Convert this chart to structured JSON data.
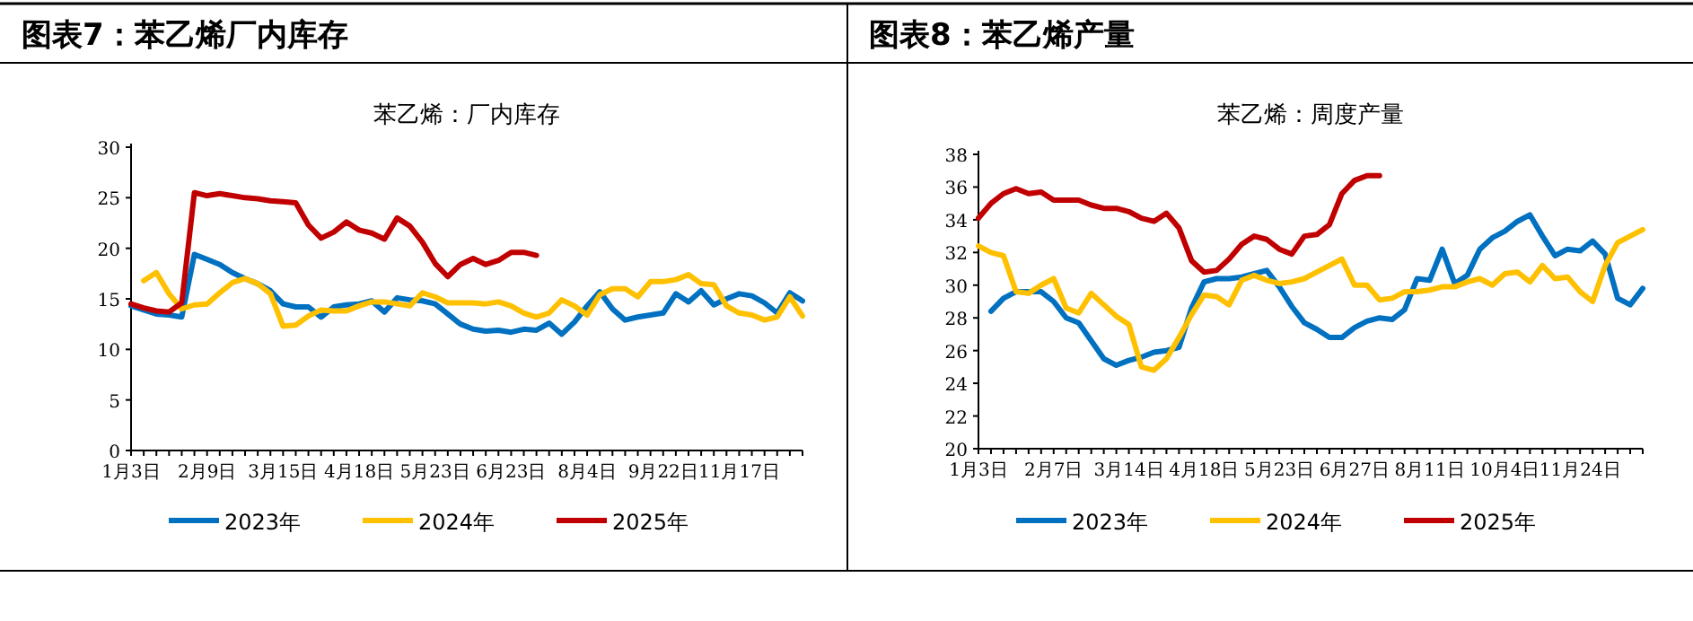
{
  "chart_data": [
    {
      "type": "line",
      "title": "图表7：苯乙烯厂内库存",
      "subtitle": "苯乙烯：厂内库存",
      "categories": [
        "1月3日",
        null,
        null,
        null,
        null,
        null,
        "2月9日",
        null,
        null,
        null,
        null,
        null,
        "3月15日",
        null,
        null,
        null,
        null,
        null,
        "4月18日",
        null,
        null,
        null,
        null,
        null,
        "5月23日",
        null,
        null,
        null,
        null,
        null,
        "6月23日",
        null,
        null,
        null,
        null,
        null,
        "8月4日",
        null,
        null,
        null,
        null,
        null,
        "9月22日",
        null,
        null,
        null,
        null,
        null,
        "11月17日",
        null,
        null,
        null,
        null,
        null
      ],
      "ylim": [
        0,
        30
      ],
      "yticks": [
        0,
        5,
        10,
        15,
        20,
        25,
        30
      ],
      "grid": false,
      "legend": "bottom",
      "marker": "none",
      "line_style": "solid",
      "series": [
        {
          "name": "2023年",
          "color": "#0070c0",
          "values": [
            14.3,
            13.9,
            13.5,
            13.4,
            13.2,
            19.4,
            18.9,
            18.4,
            17.6,
            17.0,
            16.5,
            15.8,
            14.5,
            14.2,
            14.2,
            13.2,
            14.2,
            14.4,
            14.5,
            14.8,
            13.7,
            15.1,
            14.9,
            14.8,
            14.5,
            13.5,
            12.5,
            12.0,
            11.8,
            11.9,
            11.7,
            12.0,
            11.9,
            12.6,
            11.5,
            12.7,
            14.3,
            15.7,
            14.0,
            12.9,
            13.2,
            13.4,
            13.6,
            15.5,
            14.7,
            15.8,
            14.4,
            15.0,
            15.5,
            15.3,
            14.6,
            13.6,
            15.6,
            14.8
          ]
        },
        {
          "name": "2024年",
          "color": "#ffc000",
          "values": [
            null,
            16.8,
            17.6,
            15.5,
            14.0,
            14.4,
            14.5,
            15.6,
            16.6,
            17.0,
            16.5,
            15.5,
            12.3,
            12.4,
            13.3,
            13.9,
            13.8,
            13.8,
            14.3,
            14.7,
            14.7,
            14.5,
            14.3,
            15.6,
            15.2,
            14.6,
            14.6,
            14.6,
            14.5,
            14.7,
            14.3,
            13.6,
            13.2,
            13.6,
            14.9,
            14.3,
            13.4,
            15.4,
            16.0,
            16.0,
            15.2,
            16.7,
            16.7,
            16.9,
            17.4,
            16.5,
            16.4,
            14.3,
            13.6,
            13.4,
            12.9,
            13.2,
            15.2,
            13.3
          ]
        },
        {
          "name": "2025年",
          "color": "#c00000",
          "values": [
            14.5,
            14.1,
            13.8,
            13.7,
            14.6,
            25.5,
            25.2,
            25.4,
            25.2,
            25.0,
            24.9,
            24.7,
            24.6,
            24.5,
            22.3,
            21.0,
            21.6,
            22.6,
            21.8,
            21.5,
            20.9,
            23.0,
            22.2,
            20.6,
            18.5,
            17.2,
            18.4,
            19.0,
            18.4,
            18.8,
            19.6,
            19.6,
            19.3,
            null,
            null,
            null,
            null,
            null,
            null,
            null,
            null,
            null,
            null,
            null,
            null,
            null,
            null,
            null,
            null,
            null,
            null,
            null,
            null,
            null
          ]
        }
      ]
    },
    {
      "type": "line",
      "title": "图表8：苯乙烯产量",
      "subtitle": "苯乙烯：周度产量",
      "categories": [
        "1月3日",
        null,
        null,
        null,
        null,
        null,
        "2月7日",
        null,
        null,
        null,
        null,
        null,
        "3月14日",
        null,
        null,
        null,
        null,
        null,
        "4月18日",
        null,
        null,
        null,
        null,
        null,
        "5月23日",
        null,
        null,
        null,
        null,
        null,
        "6月27日",
        null,
        null,
        null,
        null,
        null,
        "8月11日",
        null,
        null,
        null,
        null,
        null,
        "10月4日",
        null,
        null,
        null,
        null,
        null,
        "11月24日",
        null,
        null,
        null,
        null,
        null
      ],
      "ylim": [
        20,
        38
      ],
      "yticks": [
        20,
        22,
        24,
        26,
        28,
        30,
        32,
        34,
        36,
        38
      ],
      "grid": false,
      "legend": "bottom",
      "marker": "none",
      "line_style": "solid",
      "series": [
        {
          "name": "2023年",
          "color": "#0070c0",
          "values": [
            null,
            28.4,
            29.2,
            29.6,
            29.6,
            29.6,
            29.0,
            28.0,
            27.7,
            26.6,
            25.5,
            25.1,
            25.4,
            25.6,
            25.9,
            26.0,
            26.2,
            28.6,
            30.2,
            30.4,
            30.4,
            30.5,
            30.7,
            30.9,
            29.9,
            28.7,
            27.7,
            27.3,
            26.8,
            26.8,
            27.4,
            27.8,
            28.0,
            27.9,
            28.5,
            30.4,
            30.3,
            32.2,
            30.1,
            30.6,
            32.2,
            32.9,
            33.3,
            33.9,
            34.3,
            33.0,
            31.8,
            32.2,
            32.1,
            32.7,
            31.9,
            29.2,
            28.8,
            29.8
          ]
        },
        {
          "name": "2024年",
          "color": "#ffc000",
          "values": [
            32.4,
            32.0,
            31.8,
            29.6,
            29.5,
            30.0,
            30.4,
            28.6,
            28.3,
            29.5,
            28.8,
            28.1,
            27.6,
            25.0,
            24.8,
            25.5,
            26.8,
            28.2,
            29.4,
            29.3,
            28.8,
            30.3,
            30.6,
            30.3,
            30.1,
            30.2,
            30.4,
            30.8,
            31.2,
            31.6,
            30.0,
            30.0,
            29.1,
            29.2,
            29.6,
            29.6,
            29.7,
            29.9,
            29.9,
            30.2,
            30.4,
            30.0,
            30.7,
            30.8,
            30.2,
            31.2,
            30.4,
            30.5,
            29.6,
            29.0,
            31.2,
            32.6,
            33.0,
            33.4
          ]
        },
        {
          "name": "2025年",
          "color": "#c00000",
          "values": [
            34.1,
            35.0,
            35.6,
            35.9,
            35.6,
            35.7,
            35.2,
            35.2,
            35.2,
            34.9,
            34.7,
            34.7,
            34.5,
            34.1,
            33.9,
            34.4,
            33.5,
            31.5,
            30.8,
            30.9,
            31.6,
            32.5,
            33.0,
            32.8,
            32.2,
            31.9,
            33.0,
            33.1,
            33.7,
            35.6,
            36.4,
            36.7,
            36.7,
            null,
            null,
            null,
            null,
            null,
            null,
            null,
            null,
            null,
            null,
            null,
            null,
            null,
            null,
            null,
            null,
            null,
            null,
            null,
            null,
            null
          ]
        }
      ]
    }
  ]
}
